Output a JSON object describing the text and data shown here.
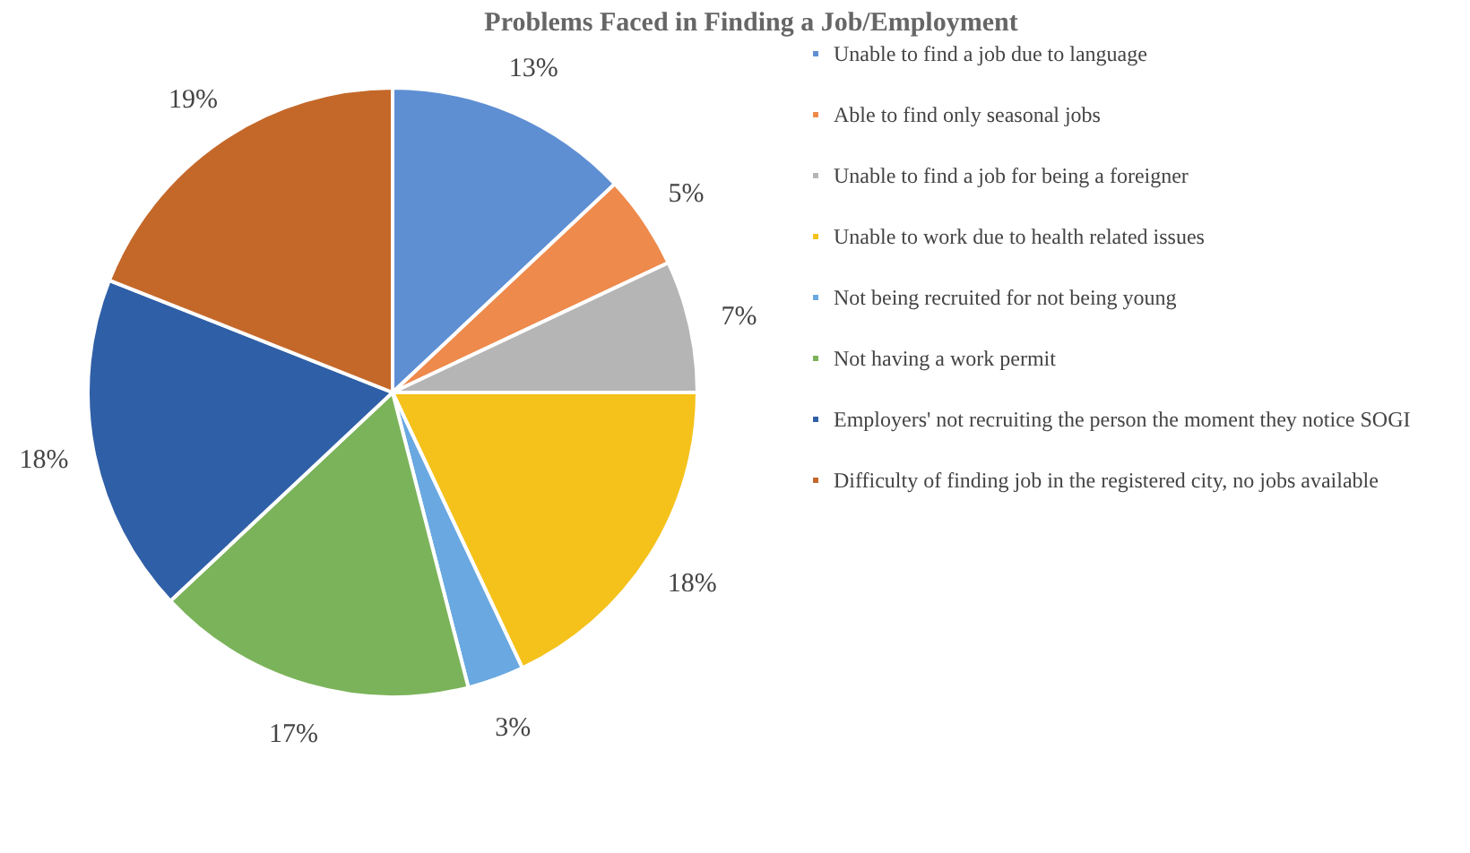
{
  "chart_data": {
    "type": "pie",
    "title": "Problems Faced in Finding a Job/Employment",
    "categories": [
      "Unable to find a job due to language",
      "Able to find only seasonal jobs",
      "Unable to find a job for being a foreigner",
      "Unable to work due to health related issues",
      "Not being recruited for not being young",
      "Not having a work permit",
      "Employers' not recruiting the person the moment they notice SOGI",
      "Difficulty of finding job in the registered city, no jobs available"
    ],
    "values": [
      13,
      5,
      7,
      18,
      3,
      17,
      18,
      19
    ],
    "value_labels": [
      "13%",
      "5%",
      "7%",
      "18%",
      "3%",
      "17%",
      "18%",
      "19%"
    ],
    "colors": [
      "#5f8fd3",
      "#ed8a4c",
      "#b5b5b5",
      "#f5c21b",
      "#69a8e0",
      "#7bb35a",
      "#2f5fa6",
      "#c4682a"
    ],
    "legend": "right"
  }
}
